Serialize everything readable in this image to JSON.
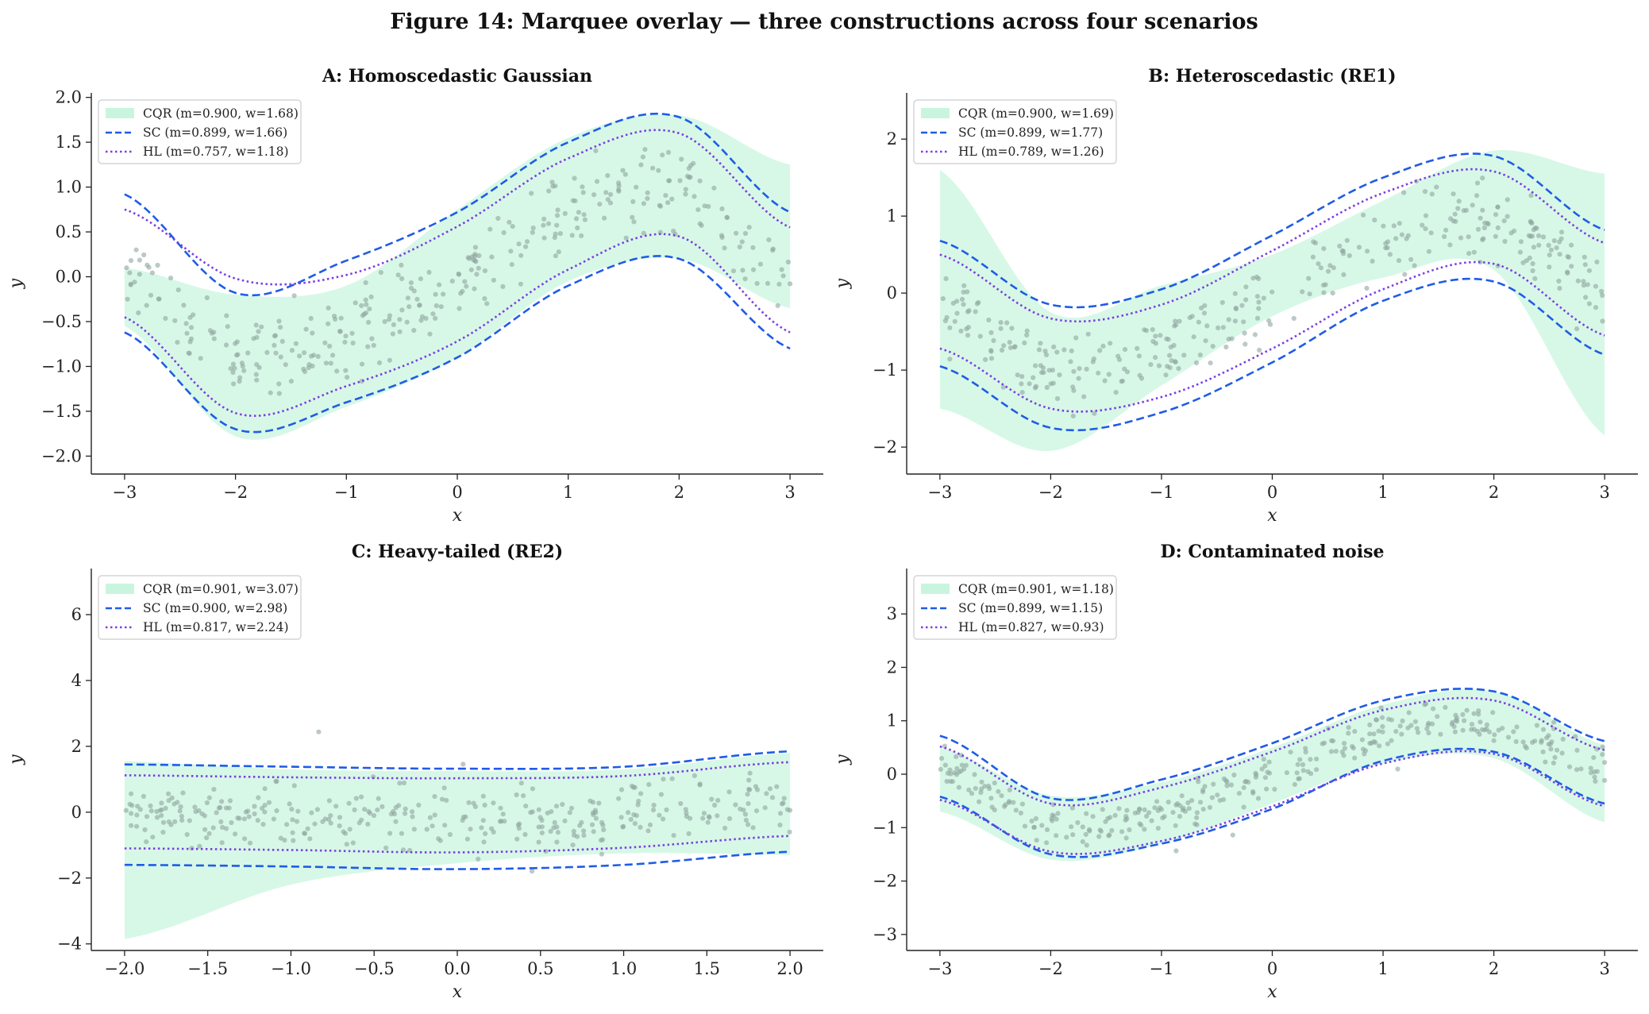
{
  "figure": {
    "title": "Figure 14: Marquee overlay — three constructions across four scenarios"
  },
  "colors": {
    "cqr_fill": "#c9f5df",
    "sc_line": "#1f5ce6",
    "hl_line": "#7b3fe0",
    "points": "#8fa5a0"
  },
  "chart_data": [
    {
      "id": "A",
      "type": "line",
      "title": "A: Homoscedastic Gaussian",
      "xlabel": "x",
      "ylabel": "y",
      "xlim": [
        -3.3,
        3.3
      ],
      "ylim": [
        -2.2,
        2.05
      ],
      "xticks": [
        -3,
        -2,
        -1,
        0,
        1,
        2,
        3
      ],
      "yticks": [
        -2.0,
        -1.5,
        -1.0,
        -0.5,
        0.0,
        0.5,
        1.0,
        1.5,
        2.0
      ],
      "ytick_labels": [
        "−2.0",
        "−1.5",
        "−1.0",
        "−0.5",
        "0.0",
        "0.5",
        "1.0",
        "1.5",
        "2.0"
      ],
      "xtick_labels": [
        "−3",
        "−2",
        "−1",
        "0",
        "1",
        "2",
        "3"
      ],
      "grid": false,
      "legend_position": "top-left",
      "legend": [
        {
          "series": "CQR",
          "label": "CQR (m=0.900, w=1.68)"
        },
        {
          "series": "SC",
          "label": "SC (m=0.899, w=1.66)"
        },
        {
          "series": "HL",
          "label": "HL (m=0.757, w=1.18)"
        }
      ],
      "x": [
        -3,
        -2,
        -1,
        0,
        1,
        2,
        3
      ],
      "cqr_lower": [
        -0.55,
        -1.78,
        -1.45,
        -0.9,
        -0.05,
        0.2,
        -0.35
      ],
      "cqr_upper": [
        0.1,
        -0.2,
        -0.1,
        0.75,
        1.55,
        1.8,
        1.25
      ],
      "sc_lower": [
        -0.62,
        -1.7,
        -1.4,
        -0.9,
        -0.1,
        0.2,
        -0.8
      ],
      "sc_upper": [
        0.92,
        -0.18,
        0.18,
        0.72,
        1.5,
        1.78,
        0.72
      ],
      "hl_lower": [
        -0.45,
        -1.52,
        -1.22,
        -0.72,
        0.08,
        0.45,
        -0.62
      ],
      "hl_upper": [
        0.75,
        -0.02,
        0.02,
        0.56,
        1.32,
        1.6,
        0.55
      ]
    },
    {
      "id": "B",
      "type": "line",
      "title": "B: Heteroscedastic (RE1)",
      "xlabel": "x",
      "ylabel": "y",
      "xlim": [
        -3.3,
        3.3
      ],
      "ylim": [
        -2.35,
        2.6
      ],
      "xticks": [
        -3,
        -2,
        -1,
        0,
        1,
        2,
        3
      ],
      "yticks": [
        -2,
        -1,
        0,
        1,
        2
      ],
      "ytick_labels": [
        "−2",
        "−1",
        "0",
        "1",
        "2"
      ],
      "xtick_labels": [
        "−3",
        "−2",
        "−1",
        "0",
        "1",
        "2",
        "3"
      ],
      "grid": false,
      "legend_position": "top-left",
      "legend": [
        {
          "series": "CQR",
          "label": "CQR (m=0.900, w=1.69)"
        },
        {
          "series": "SC",
          "label": "SC (m=0.899, w=1.77)"
        },
        {
          "series": "HL",
          "label": "HL (m=0.789, w=1.26)"
        }
      ],
      "x": [
        -3,
        -2,
        -1,
        0,
        1,
        2,
        3
      ],
      "cqr_lower": [
        -1.5,
        -2.05,
        -1.2,
        -0.3,
        0.2,
        0.3,
        -1.85
      ],
      "cqr_upper": [
        1.6,
        -0.25,
        0.1,
        0.5,
        1.2,
        1.85,
        1.55
      ],
      "sc_lower": [
        -0.95,
        -1.75,
        -1.55,
        -0.9,
        -0.1,
        0.15,
        -0.8
      ],
      "sc_upper": [
        0.68,
        -0.15,
        0.05,
        0.75,
        1.5,
        1.78,
        0.82
      ],
      "hl_lower": [
        -0.72,
        -1.5,
        -1.35,
        -0.72,
        0.05,
        0.38,
        -0.55
      ],
      "hl_upper": [
        0.5,
        -0.33,
        -0.15,
        0.55,
        1.3,
        1.58,
        0.65
      ]
    },
    {
      "id": "C",
      "type": "line",
      "title": "C: Heavy-tailed (RE2)",
      "xlabel": "x",
      "ylabel": "y",
      "xlim": [
        -2.2,
        2.2
      ],
      "ylim": [
        -4.2,
        7.4
      ],
      "xticks": [
        -2.0,
        -1.5,
        -1.0,
        -0.5,
        0.0,
        0.5,
        1.0,
        1.5,
        2.0
      ],
      "yticks": [
        -4,
        -2,
        0,
        2,
        4,
        6
      ],
      "ytick_labels": [
        "−4",
        "−2",
        "0",
        "2",
        "4",
        "6"
      ],
      "xtick_labels": [
        "−2.0",
        "−1.5",
        "−1.0",
        "−0.5",
        "0.0",
        "0.5",
        "1.0",
        "1.5",
        "2.0"
      ],
      "grid": false,
      "legend_position": "top-left",
      "legend": [
        {
          "series": "CQR",
          "label": "CQR (m=0.901, w=3.07)"
        },
        {
          "series": "SC",
          "label": "SC (m=0.900, w=2.98)"
        },
        {
          "series": "HL",
          "label": "HL (m=0.817, w=2.24)"
        }
      ],
      "x": [
        -2,
        -1,
        0,
        1,
        2
      ],
      "cqr_lower": [
        -3.85,
        -2.2,
        -1.55,
        -1.25,
        -1.3
      ],
      "cqr_upper": [
        1.55,
        1.3,
        1.25,
        1.3,
        1.8
      ],
      "sc_lower": [
        -1.6,
        -1.65,
        -1.73,
        -1.6,
        -1.2
      ],
      "sc_upper": [
        1.45,
        1.38,
        1.32,
        1.38,
        1.85
      ],
      "hl_lower": [
        -1.1,
        -1.15,
        -1.22,
        -1.08,
        -0.72
      ],
      "hl_upper": [
        1.12,
        1.06,
        1.03,
        1.1,
        1.52
      ]
    },
    {
      "id": "D",
      "type": "line",
      "title": "D: Contaminated noise",
      "xlabel": "x",
      "ylabel": "y",
      "xlim": [
        -3.3,
        3.3
      ],
      "ylim": [
        -3.3,
        3.85
      ],
      "xticks": [
        -3,
        -2,
        -1,
        0,
        1,
        2,
        3
      ],
      "yticks": [
        -3,
        -2,
        -1,
        0,
        1,
        2,
        3
      ],
      "ytick_labels": [
        "−3",
        "−2",
        "−1",
        "0",
        "1",
        "2",
        "3"
      ],
      "xtick_labels": [
        "−3",
        "−2",
        "−1",
        "0",
        "1",
        "2",
        "3"
      ],
      "grid": false,
      "legend_position": "top-left",
      "legend": [
        {
          "series": "CQR",
          "label": "CQR (m=0.901, w=1.18)"
        },
        {
          "series": "SC",
          "label": "SC (m=0.899, w=1.15)"
        },
        {
          "series": "HL",
          "label": "HL (m=0.827, w=0.93)"
        }
      ],
      "x": [
        -3,
        -2,
        -1,
        0,
        1,
        2,
        3
      ],
      "cqr_lower": [
        -0.7,
        -1.6,
        -1.3,
        -0.55,
        0.2,
        0.3,
        -0.9
      ],
      "cqr_upper": [
        0.5,
        -0.4,
        -0.15,
        0.5,
        1.3,
        1.55,
        0.55
      ],
      "sc_lower": [
        -0.42,
        -1.5,
        -1.3,
        -0.65,
        0.25,
        0.42,
        -0.55
      ],
      "sc_upper": [
        0.72,
        -0.45,
        -0.1,
        0.58,
        1.38,
        1.55,
        0.62
      ],
      "hl_lower": [
        -0.48,
        -1.45,
        -1.25,
        -0.6,
        0.2,
        0.38,
        -0.6
      ],
      "hl_upper": [
        0.52,
        -0.55,
        -0.25,
        0.42,
        1.2,
        1.38,
        0.45
      ]
    }
  ]
}
